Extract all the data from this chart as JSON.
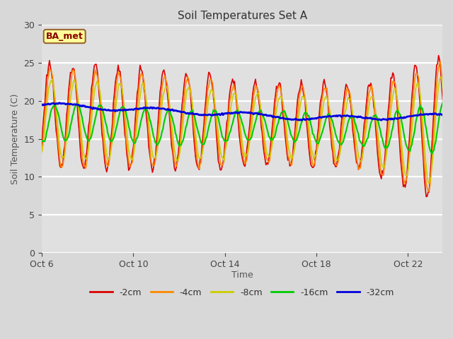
{
  "title": "Soil Temperatures Set A",
  "xlabel": "Time",
  "ylabel": "Soil Temperature (C)",
  "annotation": "BA_met",
  "ylim": [
    0,
    30
  ],
  "yticks": [
    0,
    5,
    10,
    15,
    20,
    25,
    30
  ],
  "x_tick_days": [
    6,
    10,
    14,
    18,
    22
  ],
  "x_tick_labels": [
    "Oct 6",
    "Oct 10",
    "Oct 14",
    "Oct 18",
    "Oct 22"
  ],
  "series_labels": [
    "-2cm",
    "-4cm",
    "-8cm",
    "-16cm",
    "-32cm"
  ],
  "series_colors": [
    "#dd0000",
    "#ff8800",
    "#cccc00",
    "#00cc00",
    "#0000dd"
  ],
  "line_widths": [
    1.2,
    1.2,
    1.2,
    1.5,
    2.0
  ],
  "fig_bg_color": "#d8d8d8",
  "plot_bg_color": "#e0e0e0",
  "grid_color": "#c0c0c0",
  "white_band_color": "#f0f0f0",
  "annotation_bg": "#ffff99",
  "annotation_border": "#996633",
  "annotation_text_color": "#880000"
}
